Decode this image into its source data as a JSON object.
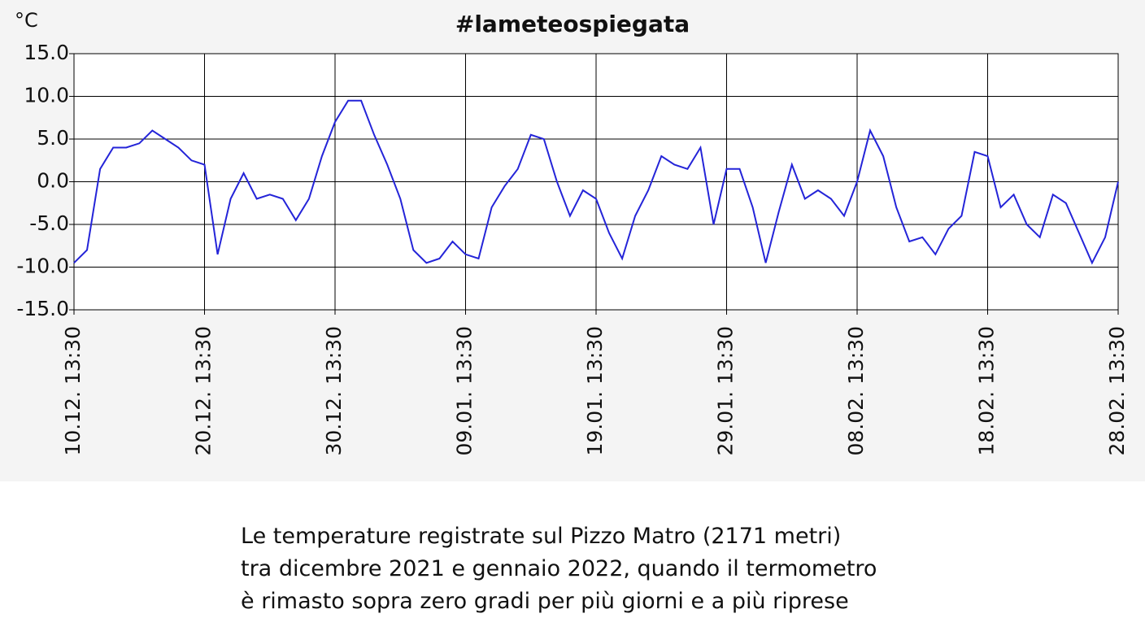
{
  "chart_data": {
    "type": "line",
    "title": "#lameteospiegata",
    "y_unit": "°C",
    "x": [
      "10.12. 13:30",
      "11.12. 13:30",
      "12.12. 13:30",
      "13.12. 13:30",
      "14.12. 13:30",
      "15.12. 13:30",
      "16.12. 13:30",
      "17.12. 13:30",
      "18.12. 13:30",
      "19.12. 13:30",
      "20.12. 13:30",
      "21.12. 13:30",
      "22.12. 13:30",
      "23.12. 13:30",
      "24.12. 13:30",
      "25.12. 13:30",
      "26.12. 13:30",
      "27.12. 13:30",
      "28.12. 13:30",
      "29.12. 13:30",
      "30.12. 13:30",
      "31.12. 13:30",
      "01.01. 13:30",
      "02.01. 13:30",
      "03.01. 13:30",
      "04.01. 13:30",
      "05.01. 13:30",
      "06.01. 13:30",
      "07.01. 13:30",
      "08.01. 13:30",
      "09.01. 13:30",
      "10.01. 13:30",
      "11.01. 13:30",
      "12.01. 13:30",
      "13.01. 13:30",
      "14.01. 13:30",
      "15.01. 13:30",
      "16.01. 13:30",
      "17.01. 13:30",
      "18.01. 13:30",
      "19.01. 13:30",
      "20.01. 13:30",
      "21.01. 13:30",
      "22.01. 13:30",
      "23.01. 13:30",
      "24.01. 13:30",
      "25.01. 13:30",
      "26.01. 13:30",
      "27.01. 13:30",
      "28.01. 13:30",
      "29.01. 13:30",
      "30.01. 13:30",
      "31.01. 13:30",
      "01.02. 13:30",
      "02.02. 13:30",
      "03.02. 13:30",
      "04.02. 13:30",
      "05.02. 13:30",
      "06.02. 13:30",
      "07.02. 13:30",
      "08.02. 13:30",
      "09.02. 13:30",
      "10.02. 13:30",
      "11.02. 13:30",
      "12.02. 13:30",
      "13.02. 13:30",
      "14.02. 13:30",
      "15.02. 13:30",
      "16.02. 13:30",
      "17.02. 13:30",
      "18.02. 13:30",
      "19.02. 13:30",
      "20.02. 13:30",
      "21.02. 13:30",
      "22.02. 13:30",
      "23.02. 13:30",
      "24.02. 13:30",
      "25.02. 13:30",
      "26.02. 13:30",
      "27.02. 13:30",
      "28.02. 13:30"
    ],
    "series": [
      {
        "color": "#2424d8",
        "values": [
          -9.5,
          -8,
          1.5,
          4,
          4,
          4.5,
          6,
          5,
          4,
          2.5,
          2,
          -8.5,
          -2,
          1,
          -2,
          -1.5,
          -2,
          -4.5,
          -2,
          3,
          7,
          9.5,
          9.5,
          5.5,
          2,
          -2,
          -8,
          -9.5,
          -9,
          -7,
          -8.5,
          -9,
          -3,
          -0.5,
          1.5,
          5.5,
          5,
          0,
          -4,
          -1,
          -2,
          -6,
          -9,
          -4,
          -1,
          3,
          2,
          1.5,
          4,
          -5,
          1.5,
          1.5,
          -3,
          -9.5,
          -3.5,
          2,
          -2,
          -1,
          -2,
          -4,
          0,
          6,
          3,
          -3,
          -7,
          -6.5,
          -8.5,
          -5.5,
          -4,
          3.5,
          3,
          -3,
          -1.5,
          -5,
          -6.5,
          -1.5,
          -2.5,
          -6,
          -9.5,
          -6.5,
          0
        ]
      }
    ],
    "xlim": [
      "10.12. 13:30",
      "28.02. 13:30"
    ],
    "xticks": [
      "10.12. 13:30",
      "20.12. 13:30",
      "30.12. 13:30",
      "09.01. 13:30",
      "19.01. 13:30",
      "29.01. 13:30",
      "08.02. 13:30",
      "18.02. 13:30",
      "28.02. 13:30"
    ],
    "ylim": [
      -15,
      15
    ],
    "yticks": [
      {
        "value": -15,
        "label": "-15.0"
      },
      {
        "value": -10,
        "label": "-10.0"
      },
      {
        "value": -5,
        "label": "-5.0"
      },
      {
        "value": 0,
        "label": "0.0"
      },
      {
        "value": 5,
        "label": "5.0"
      },
      {
        "value": 10,
        "label": "10.0"
      },
      {
        "value": 15,
        "label": "15.0"
      }
    ],
    "grid": true
  },
  "caption": [
    "Le temperature registrate sul Pizzo Matro (2171 metri)",
    "tra dicembre 2021 e gennaio 2022, quando il termometro",
    "è rimasto sopra zero gradi per più giorni e a più riprese"
  ]
}
